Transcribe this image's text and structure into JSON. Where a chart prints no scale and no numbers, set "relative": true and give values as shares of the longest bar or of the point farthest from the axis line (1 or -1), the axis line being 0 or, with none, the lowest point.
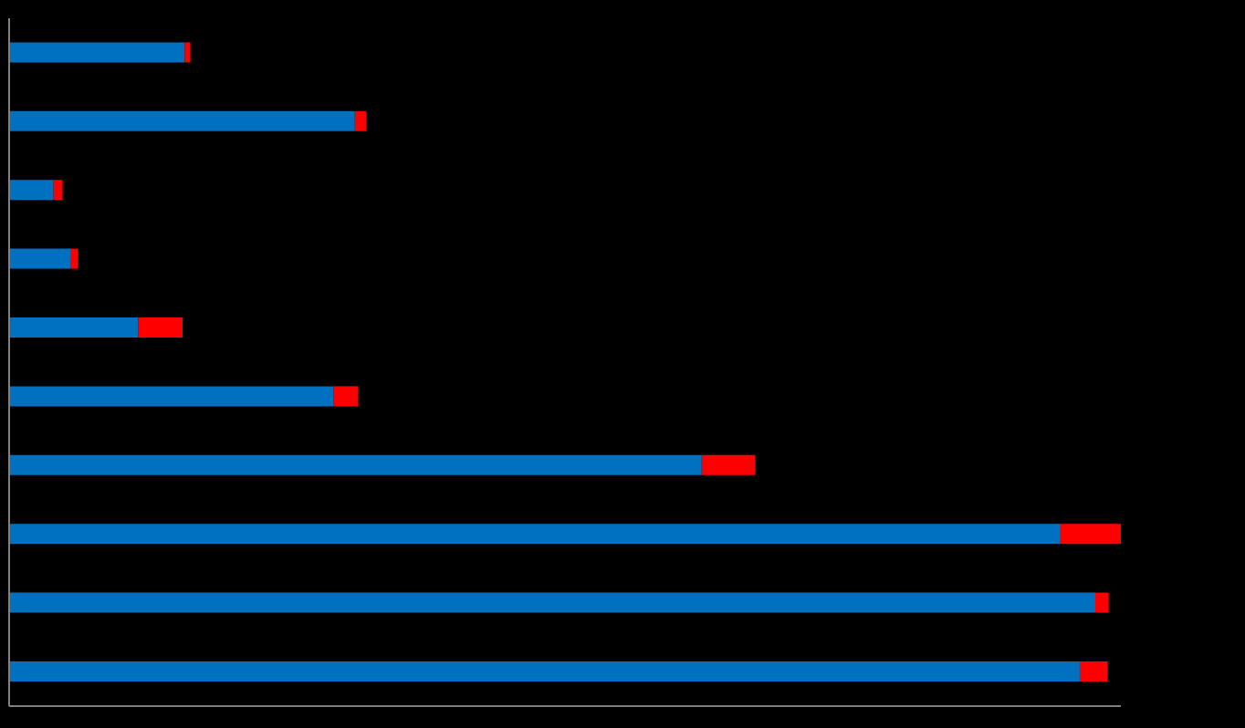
{
  "chart_data": {
    "type": "bar",
    "orientation": "horizontal",
    "stacked": true,
    "relative": true,
    "categories": [
      null,
      null,
      null,
      null,
      null,
      null,
      null,
      null,
      null,
      null
    ],
    "series": [
      {
        "color": "#0070c0",
        "values": [
          0.158,
          0.311,
          0.04,
          0.055,
          0.116,
          0.292,
          0.623,
          0.945,
          0.977,
          0.963
        ]
      },
      {
        "color": "#ff0000",
        "values": [
          0.005,
          0.01,
          0.008,
          0.007,
          0.04,
          0.022,
          0.048,
          0.055,
          0.012,
          0.025
        ]
      }
    ],
    "grid": false,
    "legend": false
  }
}
